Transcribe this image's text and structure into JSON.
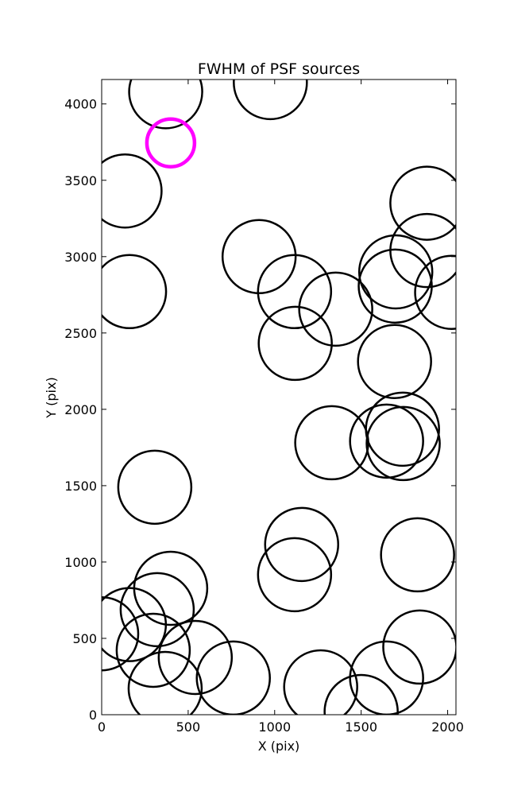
{
  "chart_data": {
    "type": "scatter",
    "title": "FWHM of PSF sources",
    "x_label": "X (pix)",
    "y_label": "Y (pix)",
    "series": [
      {
        "color": "#000000",
        "x": [
          370,
          975,
          135,
          1880,
          1880,
          910,
          1700,
          1697,
          2023,
          161,
          1115,
          1353,
          1119,
          1693,
          1739,
          1330,
          1647,
          1743,
          307,
          1156,
          1826,
          1115,
          399,
          321,
          0,
          160,
          298,
          541,
          367,
          761,
          1266,
          1500,
          1647,
          1839
        ],
        "y": [
          4080,
          4140,
          3430,
          3350,
          3040,
          3000,
          2900,
          2807,
          2766,
          2771,
          2771,
          2656,
          2432,
          2313,
          1870,
          1781,
          1792,
          1776,
          1490,
          1115,
          1047,
          917,
          828,
          688,
          530,
          590,
          422,
          375,
          172,
          240,
          182,
          21,
          240,
          443
        ]
      },
      {
        "color": "#ff00ff",
        "x": [
          399
        ],
        "y": [
          3745
        ]
      }
    ],
    "xlim": [
      0,
      2048
    ],
    "ylim": [
      0,
      4160
    ],
    "xticks": [
      0,
      500,
      1000,
      1500,
      2000
    ],
    "yticks": [
      0,
      500,
      1000,
      1500,
      2000,
      2500,
      3000,
      3500,
      4000
    ]
  }
}
